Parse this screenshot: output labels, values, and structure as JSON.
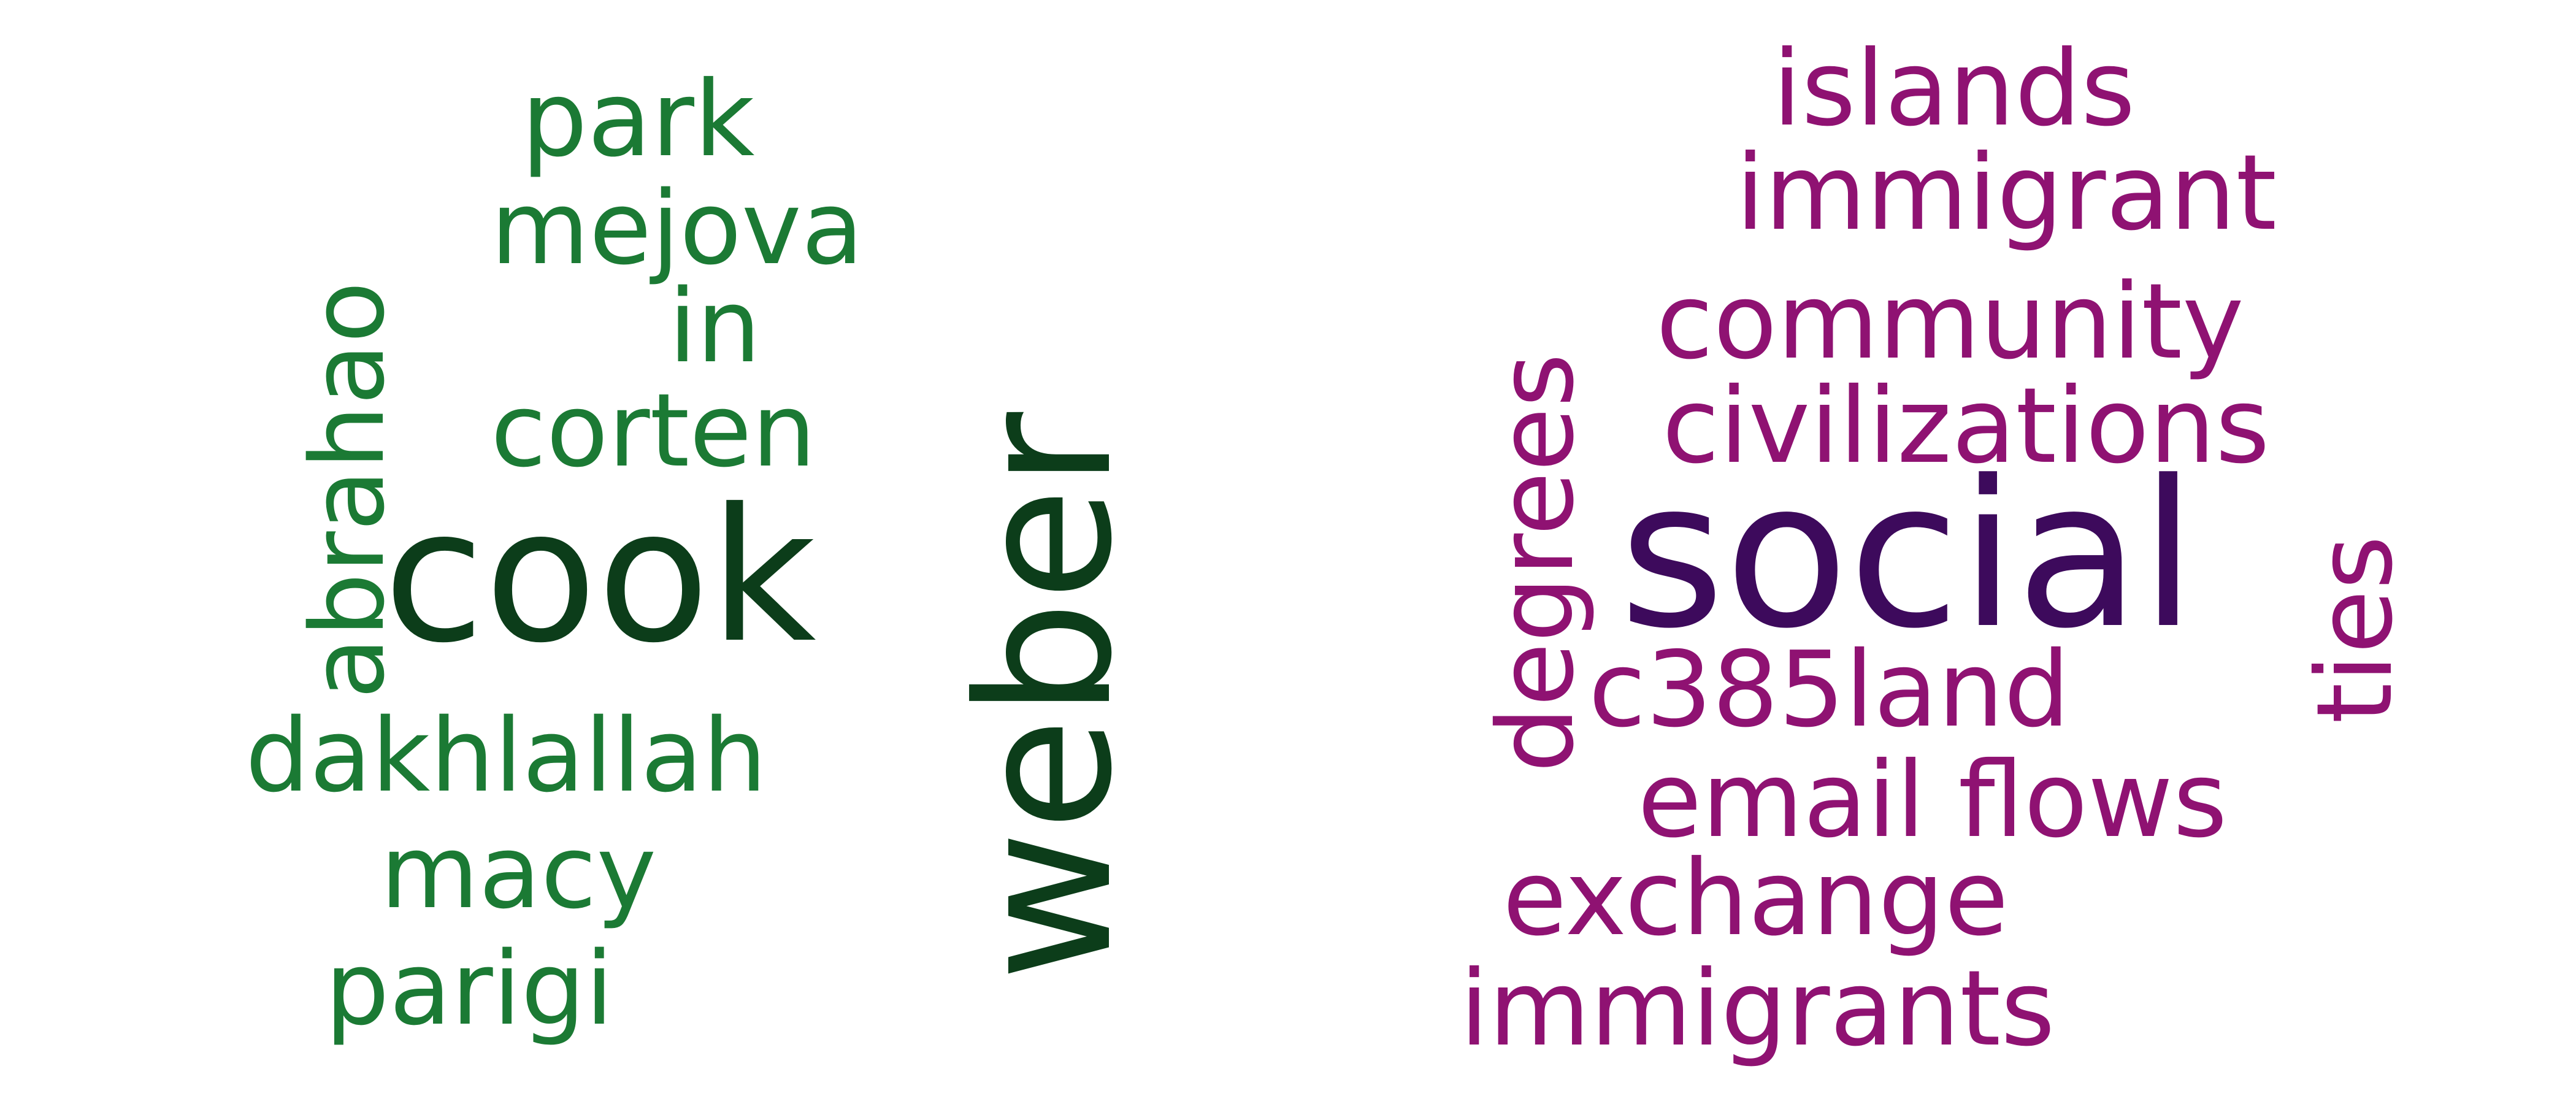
{
  "palette": {
    "left_dark": "#0c3d1a",
    "left_light": "#1b7a34",
    "right_dark": "#3d0a5c",
    "right_light": "#8f1272"
  },
  "left_cloud": {
    "words": [
      {
        "key": "park",
        "text": "park"
      },
      {
        "key": "mejova",
        "text": "mejova"
      },
      {
        "key": "in",
        "text": "in"
      },
      {
        "key": "corten",
        "text": "corten"
      },
      {
        "key": "cook",
        "text": "cook"
      },
      {
        "key": "abrahao",
        "text": "abrahao"
      },
      {
        "key": "weber",
        "text": "weber"
      },
      {
        "key": "dakhlallah",
        "text": "dakhlallah"
      },
      {
        "key": "macy",
        "text": "macy"
      },
      {
        "key": "parigi",
        "text": "parigi"
      }
    ]
  },
  "right_cloud": {
    "words": [
      {
        "key": "islands",
        "text": "islands"
      },
      {
        "key": "immigrant",
        "text": "immigrant"
      },
      {
        "key": "community",
        "text": "community"
      },
      {
        "key": "civilizations",
        "text": "civilizations"
      },
      {
        "key": "degrees",
        "text": "degrees"
      },
      {
        "key": "social",
        "text": "social"
      },
      {
        "key": "ties",
        "text": "ties"
      },
      {
        "key": "c385land",
        "text": "c385land"
      },
      {
        "key": "email_flows",
        "text": "email flows"
      },
      {
        "key": "exchange",
        "text": "exchange"
      },
      {
        "key": "immigrants",
        "text": "immigrants"
      }
    ]
  }
}
